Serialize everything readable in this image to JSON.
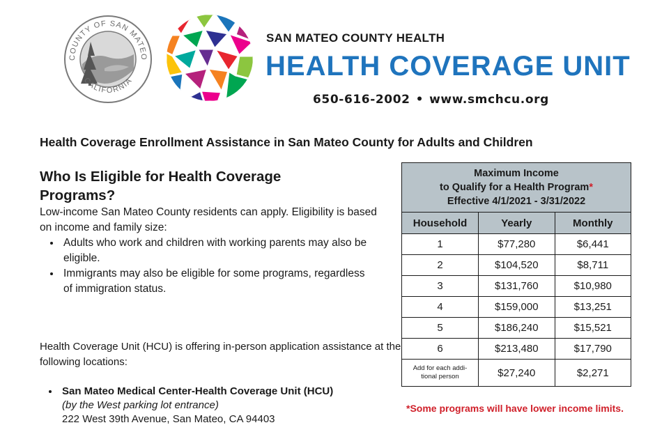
{
  "header": {
    "seal_top_text": "COUNTY OF SAN MATEO",
    "seal_bottom_text": "CALIFORNIA",
    "organization": "SAN MATEO COUNTY HEALTH",
    "unit_name": "HEALTH COVERAGE UNIT",
    "phone": "650-616-2002",
    "bullet_sep": "•",
    "website": "www.smchcu.org",
    "colors": {
      "unit_blue": "#1f74bd",
      "mosaic": [
        "#e8262f",
        "#f58220",
        "#fcc30b",
        "#8cc63f",
        "#00a651",
        "#00a99d",
        "#1b75bb",
        "#2e3192",
        "#662d91",
        "#b5217c",
        "#ec008c"
      ]
    }
  },
  "main_heading": "Health Coverage Enrollment Assistance in San Mateo County for Adults and Children",
  "eligibility": {
    "heading": "Who Is Eligible for Health Coverage Programs?",
    "intro": "Low-income San Mateo County residents can apply. Eligibility is based on income and family size:",
    "bullets": [
      "Adults who work and children with working parents may also be eligible.",
      "Immigrants may also be eligible for some programs, regardless of immigration status."
    ]
  },
  "assistance": {
    "intro": "Health Coverage Unit (HCU) is offering in-person application assistance at the following locations:",
    "locations": [
      {
        "name": "San Mateo Medical Center-Health Coverage Unit (HCU)",
        "note": "(by the West parking lot entrance)",
        "address": "222 West 39th Avenue, San Mateo, CA 94403"
      }
    ]
  },
  "income_table": {
    "title_line1": "Maximum Income",
    "title_line2": "to Qualify for a Health Program",
    "title_asterisk": "*",
    "title_line3": "Effective 4/1/2021 - 3/31/2022",
    "columns": [
      "Household",
      "Yearly",
      "Monthly"
    ],
    "rows": [
      {
        "household": "1",
        "yearly": "$77,280",
        "monthly": "$6,441"
      },
      {
        "household": "2",
        "yearly": "$104,520",
        "monthly": "$8,711"
      },
      {
        "household": "3",
        "yearly": "$131,760",
        "monthly": "$10,980"
      },
      {
        "household": "4",
        "yearly": "$159,000",
        "monthly": "$13,251"
      },
      {
        "household": "5",
        "yearly": "$186,240",
        "monthly": "$15,521"
      },
      {
        "household": "6",
        "yearly": "$213,480",
        "monthly": "$17,790"
      }
    ],
    "extra_row": {
      "household_line1": "Add for each addi-",
      "household_line2": "tional person",
      "yearly": "$27,240",
      "monthly": "$2,271"
    },
    "header_bg": "#b8c3c9"
  },
  "footnote": "*Some programs will have lower income limits.",
  "footnote_color": "#d0202a"
}
